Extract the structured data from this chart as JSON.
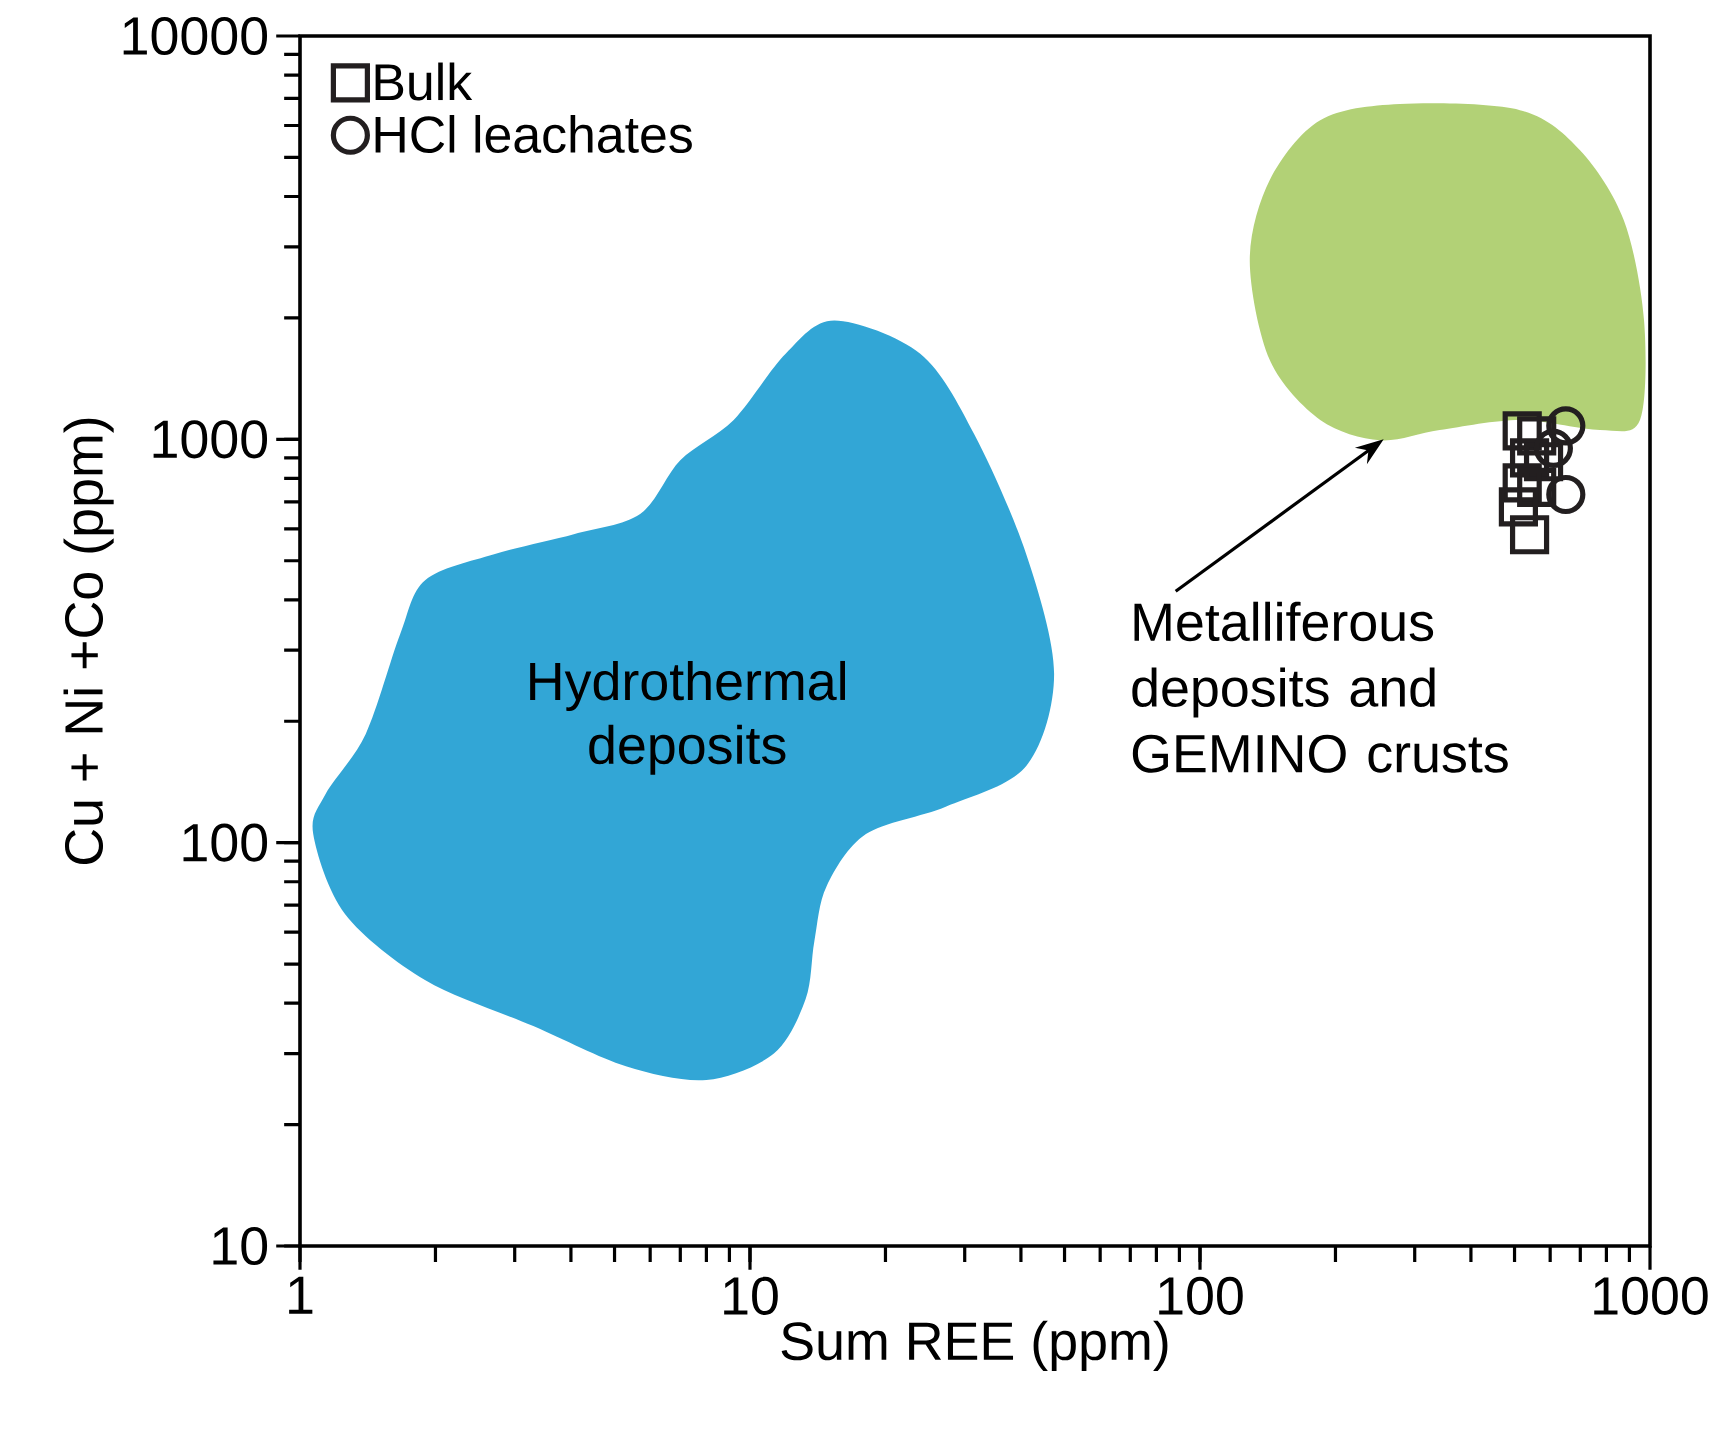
{
  "chart_data": {
    "type": "scatter",
    "xlabel": "Sum REE (ppm)",
    "ylabel": "Cu + Ni +Co (ppm)",
    "log": "xy",
    "xlim": [
      1,
      1000
    ],
    "ylim": [
      10,
      10000
    ],
    "xticks": [
      1,
      10,
      100,
      1000
    ],
    "yticks": [
      10,
      100,
      1000,
      10000
    ],
    "grid": false,
    "legend": "top left",
    "annotations": [
      {
        "text": "Metalliferous deposits and GEMINO crusts",
        "x": 256,
        "y": 1000
      }
    ],
    "series": [
      {
        "type": "area",
        "name": "Hydrothermal deposits",
        "color": "#32a6d6",
        "x": [
          15.4,
          23.9,
          31.5,
          41.1,
          47.4,
          41.1,
          27.3,
          18.1,
          14.8,
          13.9,
          13.3,
          11.3,
          8.0,
          5.3,
          3.3,
          1.9,
          1.26,
          1.07,
          1.14,
          1.4,
          1.67,
          1.9,
          2.7,
          4.06,
          5.7,
          7.0,
          9.2,
          12.0
        ],
        "values": [
          1970,
          1630,
          1030,
          519,
          262,
          155,
          123,
          105,
          78,
          57,
          41,
          30,
          25.8,
          27.9,
          35.1,
          45.6,
          66.5,
          105,
          132,
          186,
          329,
          448,
          519,
          582,
          653,
          888,
          1117,
          1630
        ]
      },
      {
        "type": "area",
        "color": "#b2d176",
        "x": [
          278,
          514,
          699,
          875,
          970,
          950,
          774,
          514,
          341,
          251,
          185,
          143,
          129,
          143,
          185
        ],
        "values": [
          6780,
          6550,
          5210,
          3490,
          1970,
          1117,
          1055,
          1117,
          1055,
          995,
          1117,
          1570,
          2780,
          4400,
          6180
        ]
      },
      {
        "name": "Bulk",
        "marker": "square",
        "color": "#231f20",
        "x": [
          520,
          560,
          540,
          580,
          520,
          560,
          510,
          540
        ],
        "values": [
          1050,
          1020,
          900,
          880,
          780,
          760,
          680,
          580
        ]
      },
      {
        "name": "HCl leachates",
        "marker": "circle",
        "color": "#231f20",
        "x": [
          650,
          650,
          610
        ],
        "values": [
          1080,
          730,
          950
        ]
      }
    ]
  }
}
